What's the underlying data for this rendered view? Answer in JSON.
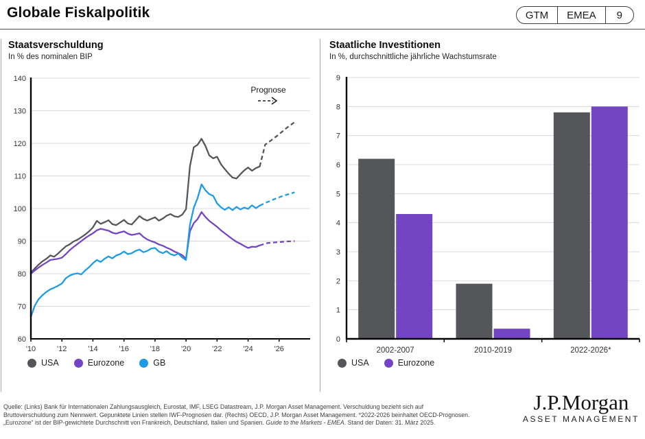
{
  "header": {
    "title": "Globale Fiskalpolitik",
    "badges": [
      "GTM",
      "EMEA",
      "9"
    ]
  },
  "colors": {
    "usa": "#54565A",
    "eurozone": "#7345C4",
    "gb": "#1B9BE8",
    "gridline": "#D9D9D9",
    "axis": "#000000"
  },
  "chart_data": [
    {
      "type": "line",
      "title": "Staatsverschuldung",
      "subtitle": "In % des nominalen BIP",
      "xlim": [
        2010,
        2028
      ],
      "ylim": [
        60,
        140
      ],
      "ytick_step": 10,
      "grid": true,
      "legend_position": "bottom",
      "annotation": {
        "label": "Prognose",
        "style": "dashed-arrow-right"
      },
      "xticks": [
        {
          "x": 2010,
          "label": "'10"
        },
        {
          "x": 2012,
          "label": "'12"
        },
        {
          "x": 2014,
          "label": "'14"
        },
        {
          "x": 2016,
          "label": "'16"
        },
        {
          "x": 2018,
          "label": "'18"
        },
        {
          "x": 2020,
          "label": "'20"
        },
        {
          "x": 2022,
          "label": "'22"
        },
        {
          "x": 2024,
          "label": "'24"
        },
        {
          "x": 2026,
          "label": "'26"
        }
      ],
      "series": [
        {
          "name": "USA",
          "color": "#54565A",
          "values": [
            [
              2010.0,
              80.3
            ],
            [
              2010.25,
              81.6
            ],
            [
              2010.5,
              82.8
            ],
            [
              2010.75,
              83.8
            ],
            [
              2011.0,
              84.6
            ],
            [
              2011.25,
              85.6
            ],
            [
              2011.5,
              85.2
            ],
            [
              2011.75,
              86.2
            ],
            [
              2012.0,
              87.3
            ],
            [
              2012.25,
              88.4
            ],
            [
              2012.5,
              89.0
            ],
            [
              2012.75,
              89.9
            ],
            [
              2013.0,
              90.4
            ],
            [
              2013.25,
              91.2
            ],
            [
              2013.5,
              92.0
            ],
            [
              2013.75,
              93.0
            ],
            [
              2014.0,
              94.2
            ],
            [
              2014.25,
              96.2
            ],
            [
              2014.5,
              95.3
            ],
            [
              2014.75,
              95.8
            ],
            [
              2015.0,
              96.4
            ],
            [
              2015.25,
              95.2
            ],
            [
              2015.5,
              94.9
            ],
            [
              2015.75,
              95.7
            ],
            [
              2016.0,
              96.5
            ],
            [
              2016.25,
              95.4
            ],
            [
              2016.5,
              95.1
            ],
            [
              2016.75,
              96.4
            ],
            [
              2017.0,
              97.7
            ],
            [
              2017.25,
              96.8
            ],
            [
              2017.5,
              96.3
            ],
            [
              2017.75,
              96.8
            ],
            [
              2018.0,
              97.3
            ],
            [
              2018.25,
              96.3
            ],
            [
              2018.5,
              96.9
            ],
            [
              2018.75,
              97.8
            ],
            [
              2019.0,
              98.3
            ],
            [
              2019.25,
              97.6
            ],
            [
              2019.5,
              97.4
            ],
            [
              2019.75,
              98.1
            ],
            [
              2020.0,
              99.8
            ],
            [
              2020.25,
              113.0
            ],
            [
              2020.5,
              118.8
            ],
            [
              2020.75,
              119.6
            ],
            [
              2021.0,
              121.4
            ],
            [
              2021.25,
              119.2
            ],
            [
              2021.5,
              116.3
            ],
            [
              2021.75,
              115.4
            ],
            [
              2022.0,
              115.9
            ],
            [
              2022.25,
              113.6
            ],
            [
              2022.5,
              112.1
            ],
            [
              2022.75,
              110.7
            ],
            [
              2023.0,
              109.5
            ],
            [
              2023.25,
              109.2
            ],
            [
              2023.5,
              110.5
            ],
            [
              2023.75,
              111.7
            ],
            [
              2024.0,
              112.6
            ],
            [
              2024.25,
              111.6
            ],
            [
              2024.5,
              112.4
            ],
            [
              2024.75,
              112.9
            ]
          ],
          "forecast": [
            [
              2024.75,
              112.9
            ],
            [
              2025.1,
              119.6
            ],
            [
              2025.5,
              121.0
            ],
            [
              2026.0,
              122.8
            ],
            [
              2026.5,
              124.8
            ],
            [
              2027.0,
              126.5
            ]
          ]
        },
        {
          "name": "Eurozone",
          "color": "#7345C4",
          "values": [
            [
              2010.0,
              80.0
            ],
            [
              2010.25,
              81.0
            ],
            [
              2010.5,
              81.9
            ],
            [
              2010.75,
              82.7
            ],
            [
              2011.0,
              83.4
            ],
            [
              2011.25,
              84.2
            ],
            [
              2011.5,
              84.4
            ],
            [
              2011.75,
              84.6
            ],
            [
              2012.0,
              84.9
            ],
            [
              2012.25,
              86.0
            ],
            [
              2012.5,
              87.2
            ],
            [
              2012.75,
              88.2
            ],
            [
              2013.0,
              89.1
            ],
            [
              2013.25,
              90.0
            ],
            [
              2013.5,
              90.9
            ],
            [
              2013.75,
              91.7
            ],
            [
              2014.0,
              92.4
            ],
            [
              2014.25,
              93.3
            ],
            [
              2014.5,
              93.8
            ],
            [
              2014.75,
              93.5
            ],
            [
              2015.0,
              93.2
            ],
            [
              2015.25,
              92.6
            ],
            [
              2015.5,
              92.3
            ],
            [
              2015.75,
              92.7
            ],
            [
              2016.0,
              93.0
            ],
            [
              2016.25,
              92.3
            ],
            [
              2016.5,
              91.9
            ],
            [
              2016.75,
              92.1
            ],
            [
              2017.0,
              92.4
            ],
            [
              2017.25,
              91.3
            ],
            [
              2017.5,
              90.5
            ],
            [
              2017.75,
              90.0
            ],
            [
              2018.0,
              89.6
            ],
            [
              2018.25,
              89.0
            ],
            [
              2018.5,
              88.6
            ],
            [
              2018.75,
              88.0
            ],
            [
              2019.0,
              87.5
            ],
            [
              2019.25,
              86.8
            ],
            [
              2019.5,
              86.3
            ],
            [
              2019.75,
              85.7
            ],
            [
              2020.0,
              84.6
            ],
            [
              2020.25,
              93.0
            ],
            [
              2020.5,
              95.5
            ],
            [
              2020.75,
              96.8
            ],
            [
              2021.0,
              98.9
            ],
            [
              2021.25,
              97.4
            ],
            [
              2021.5,
              96.2
            ],
            [
              2021.75,
              95.3
            ],
            [
              2022.0,
              94.4
            ],
            [
              2022.25,
              93.3
            ],
            [
              2022.5,
              92.4
            ],
            [
              2022.75,
              91.5
            ],
            [
              2023.0,
              90.6
            ],
            [
              2023.25,
              89.8
            ],
            [
              2023.5,
              89.2
            ],
            [
              2023.75,
              88.5
            ],
            [
              2024.0,
              87.9
            ],
            [
              2024.25,
              88.3
            ],
            [
              2024.5,
              88.2
            ],
            [
              2024.75,
              88.7
            ]
          ],
          "forecast": [
            [
              2024.75,
              88.7
            ],
            [
              2025.25,
              89.4
            ],
            [
              2026.0,
              89.7
            ],
            [
              2026.5,
              89.9
            ],
            [
              2027.0,
              90.0
            ]
          ]
        },
        {
          "name": "GB",
          "color": "#1B9BE8",
          "values": [
            [
              2010.0,
              66.8
            ],
            [
              2010.25,
              70.2
            ],
            [
              2010.5,
              72.2
            ],
            [
              2010.75,
              73.4
            ],
            [
              2011.0,
              74.4
            ],
            [
              2011.25,
              75.2
            ],
            [
              2011.5,
              75.7
            ],
            [
              2011.75,
              76.3
            ],
            [
              2012.0,
              77.0
            ],
            [
              2012.25,
              78.6
            ],
            [
              2012.5,
              79.4
            ],
            [
              2012.75,
              79.9
            ],
            [
              2013.0,
              80.1
            ],
            [
              2013.25,
              79.8
            ],
            [
              2013.5,
              81.0
            ],
            [
              2013.75,
              82.0
            ],
            [
              2014.0,
              83.2
            ],
            [
              2014.25,
              84.2
            ],
            [
              2014.5,
              83.6
            ],
            [
              2014.75,
              84.6
            ],
            [
              2015.0,
              85.3
            ],
            [
              2015.25,
              84.7
            ],
            [
              2015.5,
              85.6
            ],
            [
              2015.75,
              86.0
            ],
            [
              2016.0,
              86.8
            ],
            [
              2016.25,
              86.0
            ],
            [
              2016.5,
              86.3
            ],
            [
              2016.75,
              87.0
            ],
            [
              2017.0,
              87.4
            ],
            [
              2017.25,
              86.6
            ],
            [
              2017.5,
              87.0
            ],
            [
              2017.75,
              87.7
            ],
            [
              2018.0,
              87.9
            ],
            [
              2018.25,
              86.8
            ],
            [
              2018.5,
              86.3
            ],
            [
              2018.75,
              86.9
            ],
            [
              2019.0,
              86.0
            ],
            [
              2019.25,
              85.6
            ],
            [
              2019.5,
              86.2
            ],
            [
              2019.75,
              85.0
            ],
            [
              2020.0,
              84.2
            ],
            [
              2020.25,
              95.0
            ],
            [
              2020.5,
              100.2
            ],
            [
              2020.75,
              103.3
            ],
            [
              2021.0,
              107.4
            ],
            [
              2021.25,
              105.6
            ],
            [
              2021.5,
              104.4
            ],
            [
              2021.75,
              103.9
            ],
            [
              2022.0,
              101.6
            ],
            [
              2022.25,
              100.4
            ],
            [
              2022.5,
              99.6
            ],
            [
              2022.75,
              100.4
            ],
            [
              2023.0,
              99.5
            ],
            [
              2023.25,
              100.5
            ],
            [
              2023.5,
              99.7
            ],
            [
              2023.75,
              100.3
            ],
            [
              2024.0,
              99.9
            ],
            [
              2024.25,
              101.0
            ],
            [
              2024.5,
              100.1
            ],
            [
              2024.75,
              100.9
            ]
          ],
          "forecast": [
            [
              2024.75,
              100.9
            ],
            [
              2025.25,
              102.0
            ],
            [
              2025.75,
              103.0
            ],
            [
              2026.25,
              103.9
            ],
            [
              2026.75,
              104.6
            ],
            [
              2027.0,
              105.0
            ]
          ]
        }
      ]
    },
    {
      "type": "bar",
      "title": "Staatliche Investitionen",
      "subtitle": "In %, durchschnittliche jährliche Wachstumsrate",
      "categories": [
        "2002-2007",
        "2010-2019",
        "2022-2026*"
      ],
      "series": [
        {
          "name": "USA",
          "color": "#54565A",
          "values": [
            6.2,
            1.9,
            7.8
          ]
        },
        {
          "name": "Eurozone",
          "color": "#7345C4",
          "values": [
            4.3,
            0.35,
            8.0
          ]
        }
      ],
      "ylim": [
        0,
        9
      ],
      "ytick_step": 1,
      "grid": true,
      "legend_position": "bottom"
    }
  ],
  "footer": {
    "lines": [
      "Quelle: (Links) Bank für Internationalen Zahlungsausgleich, Eurostat, IMF, LSEG Datastream, J.P. Morgan Asset Management. Verschuldung bezieht sich auf",
      "Bruttoverschuldung zum Nennwert. Gepunktete Linien stellen IWF-Prognosen dar. (Rechts) OECD, J.P. Morgan Asset Management. *2022-2026 beinhaltet OECD-Prognosen."
    ],
    "line3": {
      "pre": "„Eurozone“ ist der BIP-gewichtete Durchschnitt von Frankreich, Deutschland, Italien und Spanien. ",
      "italic": "Guide to the Markets - EMEA",
      "post": ". Stand der Daten: 31. März 2025."
    },
    "logo": {
      "name": "J.P.Morgan",
      "sub": "ASSET MANAGEMENT"
    }
  }
}
